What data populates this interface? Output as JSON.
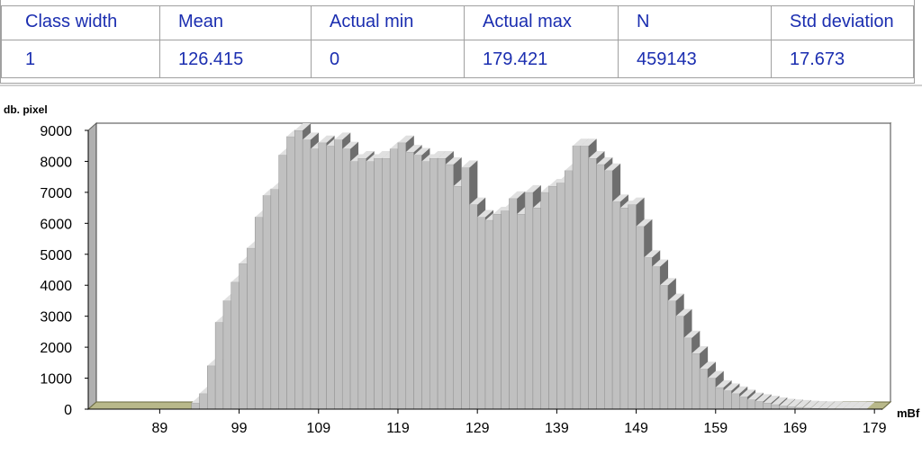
{
  "stats": {
    "headers": [
      "Class width",
      "Mean",
      "Actual min",
      "Actual max",
      "N",
      "Std deviation"
    ],
    "values": [
      "1",
      "126.415",
      "0",
      "179.421",
      "459143",
      "17.673"
    ]
  },
  "colors": {
    "table_text": "#1b2eb0",
    "bar_face": "#c0c0c0",
    "bar_side": "#6e6e6e",
    "floor": "#b8b88a",
    "back_wall_edge": "#c8c89a"
  },
  "chart_data": {
    "type": "bar",
    "ylabel": "db. pixel",
    "xlabel": "mBf",
    "ylim": [
      0,
      9000
    ],
    "yticks": [
      "0",
      "1000",
      "2000",
      "3000",
      "4000",
      "5000",
      "6000",
      "7000",
      "8000",
      "9000"
    ],
    "xticks": [
      "89",
      "99",
      "109",
      "119",
      "129",
      "139",
      "149",
      "159",
      "169",
      "179"
    ],
    "x_range": [
      80,
      179
    ],
    "grid": false,
    "legend": "none",
    "bins": [
      80,
      81,
      82,
      83,
      84,
      85,
      86,
      87,
      88,
      89,
      90,
      91,
      92,
      93,
      94,
      95,
      96,
      97,
      98,
      99,
      100,
      101,
      102,
      103,
      104,
      105,
      106,
      107,
      108,
      109,
      110,
      111,
      112,
      113,
      114,
      115,
      116,
      117,
      118,
      119,
      120,
      121,
      122,
      123,
      124,
      125,
      126,
      127,
      128,
      129,
      130,
      131,
      132,
      133,
      134,
      135,
      136,
      137,
      138,
      139,
      140,
      141,
      142,
      143,
      144,
      145,
      146,
      147,
      148,
      149,
      150,
      151,
      152,
      153,
      154,
      155,
      156,
      157,
      158,
      159,
      160,
      161,
      162,
      163,
      164,
      165,
      166,
      167,
      168,
      169,
      170,
      171,
      172,
      173,
      174,
      175,
      176,
      177,
      178,
      179
    ],
    "values": [
      0,
      0,
      0,
      0,
      0,
      0,
      0,
      0,
      0,
      0,
      0,
      0,
      0,
      200,
      500,
      1400,
      2800,
      3500,
      4100,
      4700,
      5200,
      6200,
      6900,
      7100,
      8200,
      8800,
      9000,
      8700,
      8400,
      8600,
      8500,
      8700,
      8400,
      8000,
      8100,
      8000,
      8100,
      8100,
      8400,
      8600,
      8300,
      8200,
      8000,
      8100,
      8100,
      7900,
      7200,
      7800,
      6600,
      6200,
      6100,
      6300,
      6400,
      6800,
      6300,
      7000,
      6500,
      7000,
      7200,
      7300,
      7700,
      8500,
      8500,
      8100,
      7900,
      7700,
      6700,
      6500,
      6600,
      5900,
      4900,
      4600,
      4000,
      3500,
      3000,
      2300,
      1800,
      1300,
      1000,
      700,
      600,
      500,
      400,
      300,
      250,
      200,
      150,
      100,
      80,
      60,
      40,
      30,
      20,
      10,
      5,
      3,
      2,
      1,
      0,
      0
    ]
  }
}
